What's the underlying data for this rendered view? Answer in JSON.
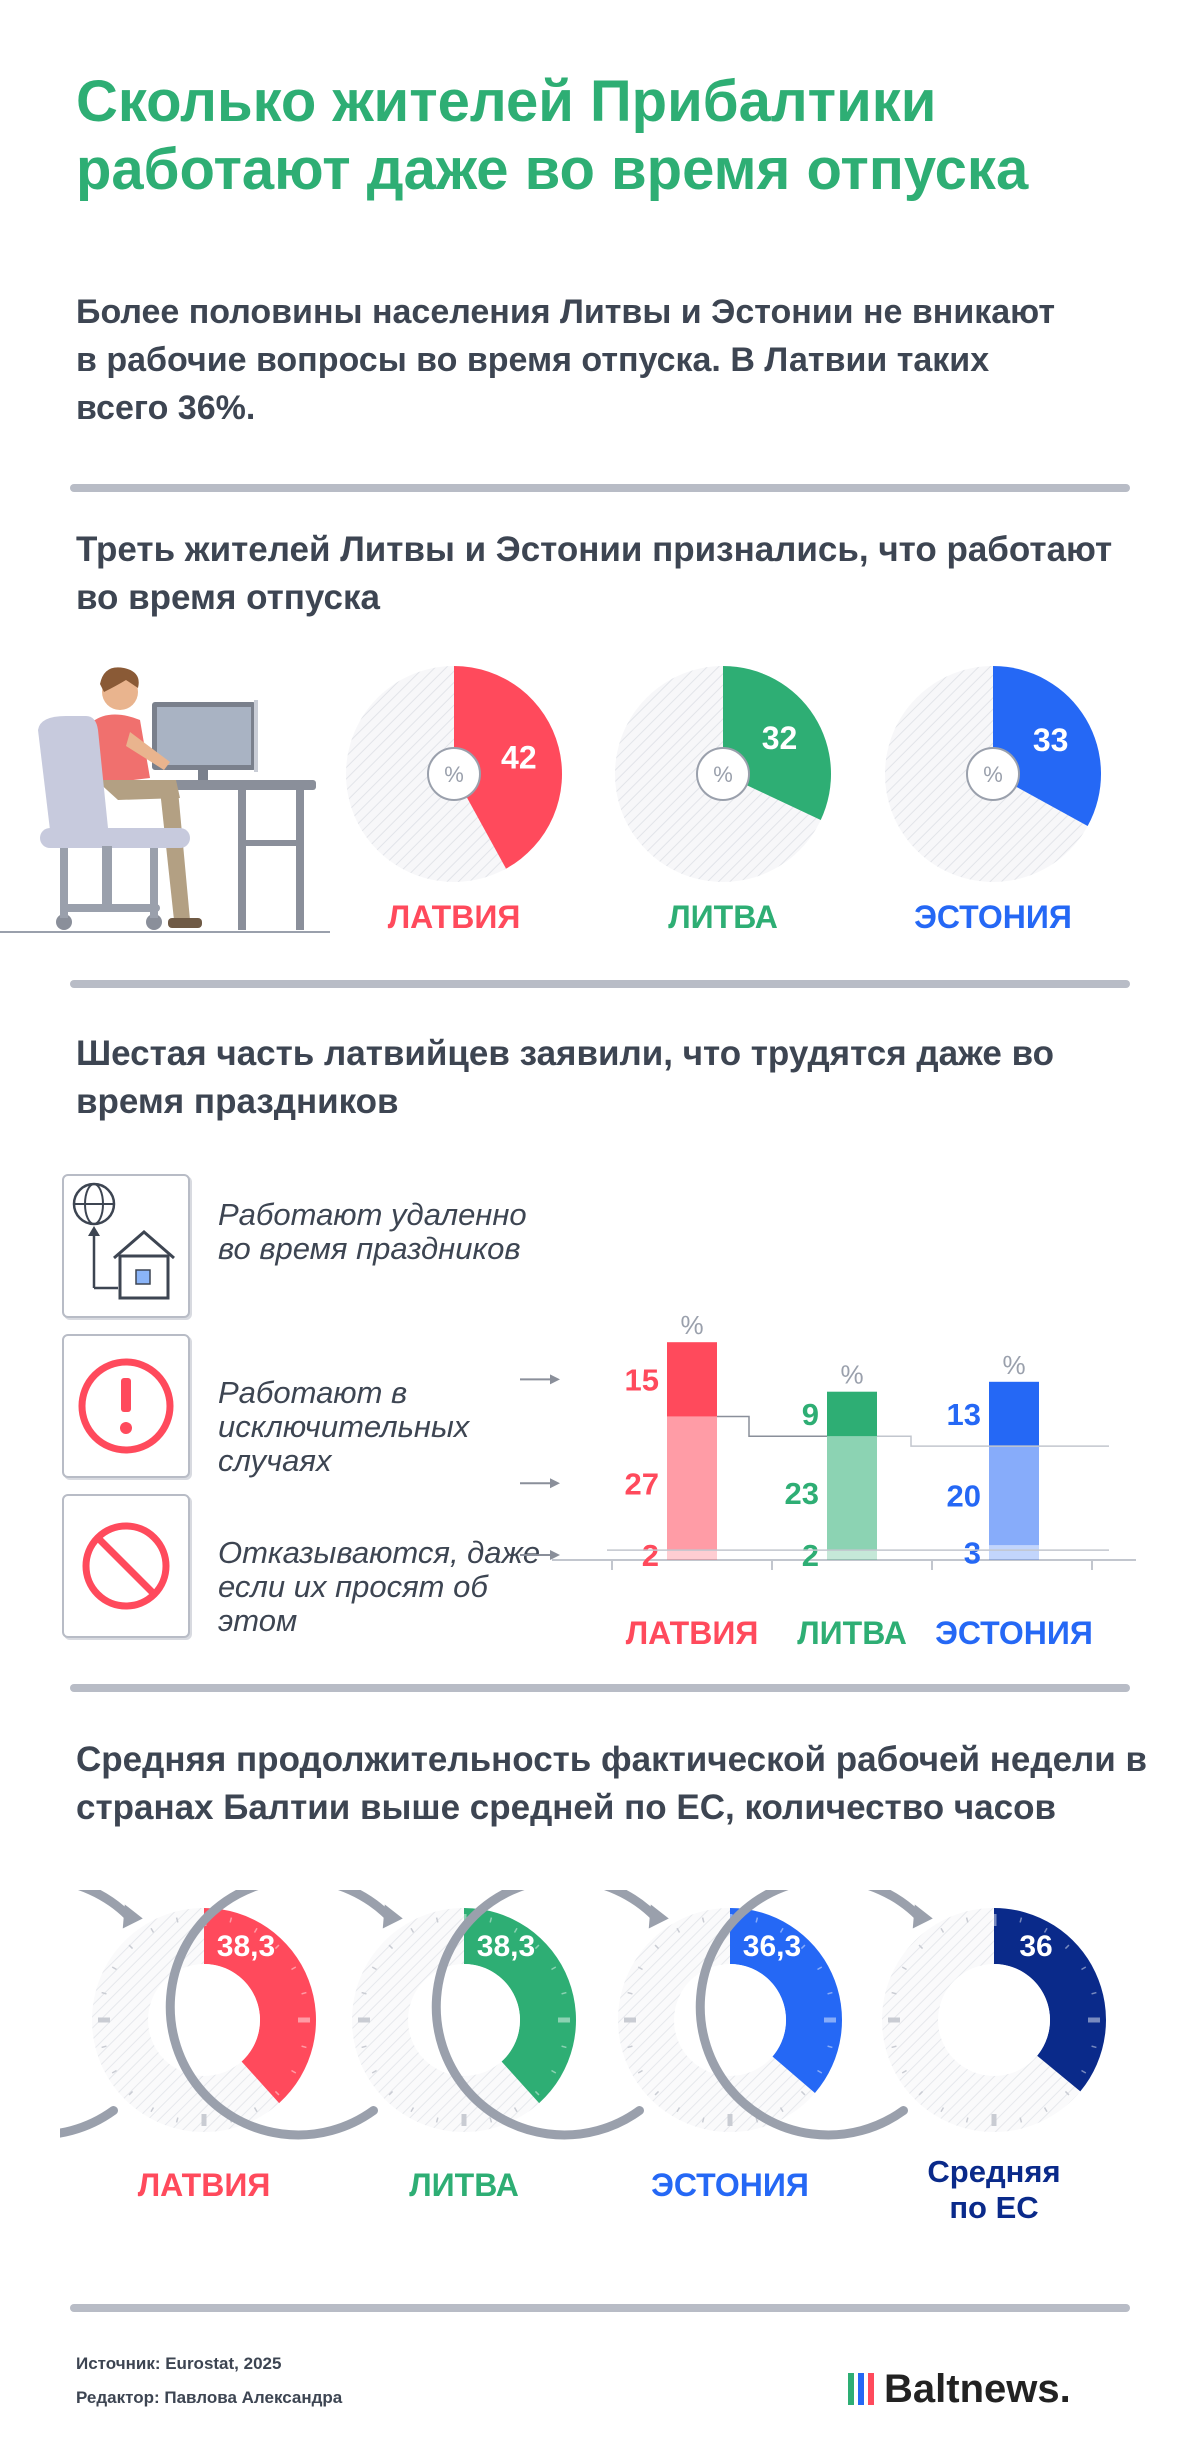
{
  "title": "Сколько жителей Прибалтики работают даже во время отпуска",
  "intro": "Более половины населения Литвы и Эстонии не вникают в рабочие вопросы во время отпуска. В Латвии таких всего 36%.",
  "colors": {
    "latvia": "#ff4a5c",
    "lithuania": "#2eae74",
    "estonia": "#2568f5",
    "eu": "#0a2a8a",
    "gray": "#9aa0ac",
    "text": "#3d4552"
  },
  "section1": {
    "title": "Треть жителей Литвы и Эстонии признались, что работают во время отпуска",
    "unit": "%",
    "countries": [
      "ЛАТВИЯ",
      "ЛИТВА",
      "ЭСТОНИЯ"
    ]
  },
  "section2": {
    "title": "Шестая часть латвийцев заявили, что трудятся даже во время праздников",
    "legend": [
      {
        "icon": "house-globe-icon",
        "text": "Работают удаленно во время праздников"
      },
      {
        "icon": "exclamation-icon",
        "text": "Работают в исключительных случаях"
      },
      {
        "icon": "prohibited-icon",
        "text": "Отказываются, даже если их просят об этом"
      }
    ],
    "unit": "%",
    "countries": [
      "ЛАТВИЯ",
      "ЛИТВА",
      "ЭСТОНИЯ"
    ]
  },
  "section3": {
    "title": "Средняя продолжительность фактической рабочей недели в странах Балтии выше средней по ЕС, количество часов",
    "labels": [
      "ЛАТВИЯ",
      "ЛИТВА",
      "ЭСТОНИЯ",
      "Средняя по ЕС"
    ]
  },
  "footer": {
    "source": "Источник: Eurostat, 2025",
    "editor": "Редактор: Павлова Александра",
    "brand": "Baltnews."
  },
  "chart_data": [
    {
      "type": "pie",
      "title": "Треть жителей Литвы и Эстонии признались, что работают во время отпуска",
      "unit": "%",
      "categories": [
        "ЛАТВИЯ",
        "ЛИТВА",
        "ЭСТОНИЯ"
      ],
      "values": [
        42,
        32,
        33
      ],
      "labels": [
        "42",
        "32",
        "33"
      ]
    },
    {
      "type": "bar",
      "stacked": true,
      "title": "Шестая часть латвийцев заявили, что трудятся даже во время праздников",
      "unit": "%",
      "categories": [
        "ЛАТВИЯ",
        "ЛИТВА",
        "ЭСТОНИЯ"
      ],
      "series": [
        {
          "name": "Работают удаленно во время праздников",
          "values": [
            15,
            9,
            13
          ]
        },
        {
          "name": "Работают в исключительных случаях",
          "values": [
            27,
            23,
            20
          ]
        },
        {
          "name": "Отказываются, даже если их просят об этом",
          "values": [
            2,
            2,
            3
          ]
        }
      ]
    },
    {
      "type": "pie",
      "title": "Средняя продолжительность фактической рабочей недели в странах Балтии выше средней по ЕС, количество часов",
      "categories": [
        "ЛАТВИЯ",
        "ЛИТВА",
        "ЭСТОНИЯ",
        "Средняя по ЕС"
      ],
      "values": [
        38.3,
        38.3,
        36.3,
        36
      ],
      "labels": [
        "38,3",
        "38,3",
        "36,3",
        "36"
      ],
      "max": 100
    }
  ]
}
